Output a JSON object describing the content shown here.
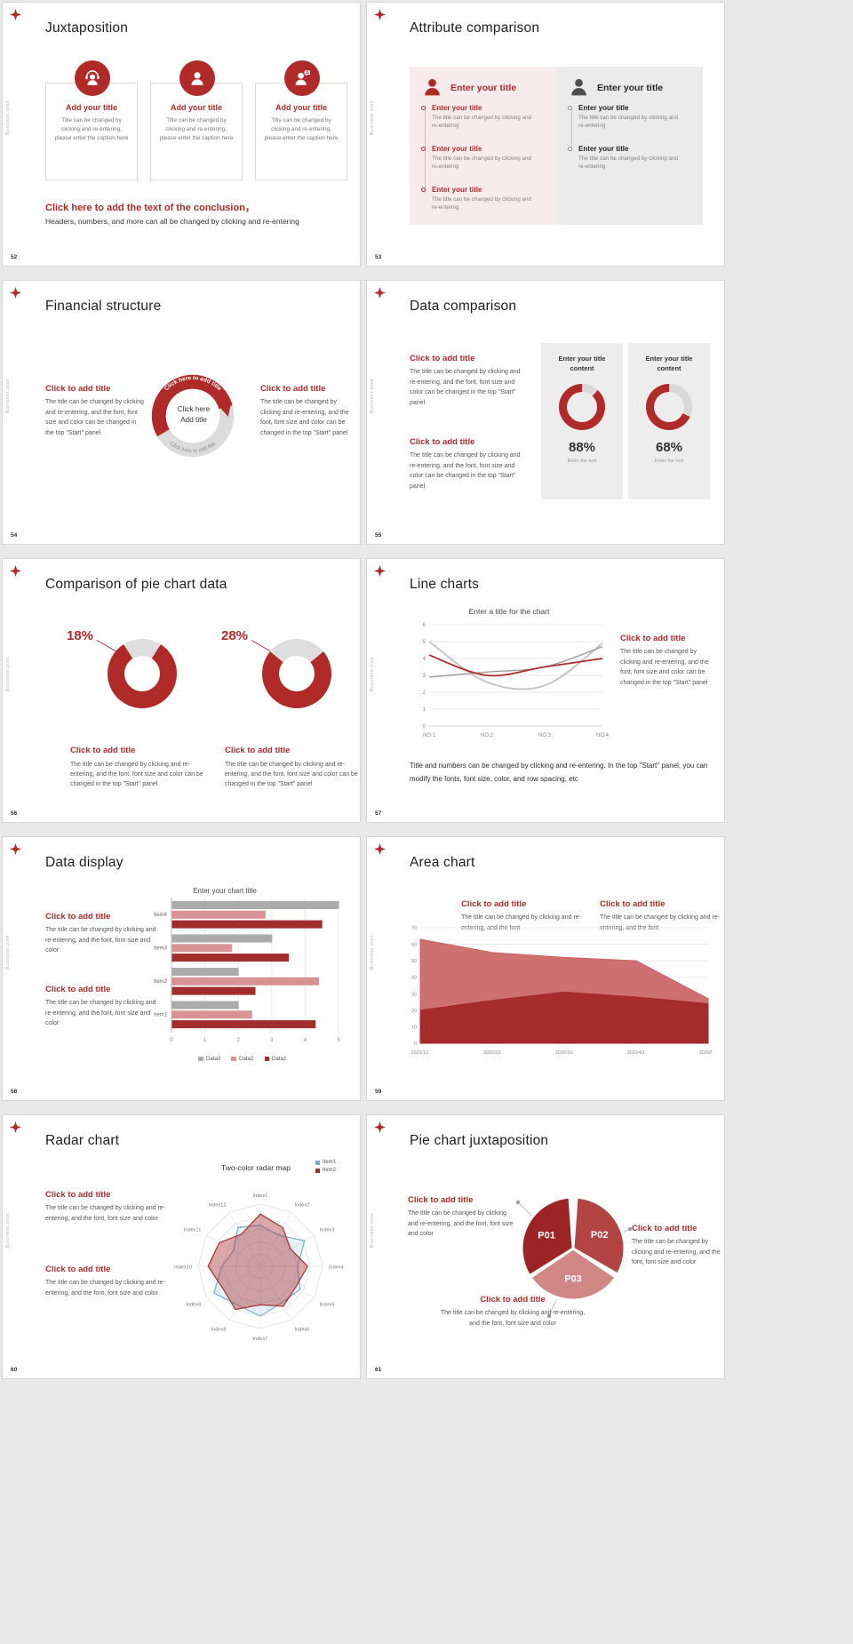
{
  "page": {
    "background": "#e9e9ea",
    "accent": "#b12a2a",
    "sidebar_label": "Business plan"
  },
  "slides": {
    "s52": {
      "number": "52",
      "title": "Juxtaposition",
      "cards": [
        {
          "icon": "support-person-icon",
          "title": "Add your title",
          "caption": "Title can be changed by clicking and re-entering, please enter the caption here"
        },
        {
          "icon": "person-icon",
          "title": "Add your title",
          "caption": "Title can be changed by clicking and re-entering, please enter the caption here"
        },
        {
          "icon": "person-speech-icon",
          "title": "Add your title",
          "caption": "Title can be changed by clicking and re-entering, please enter the caption here"
        }
      ],
      "conclusion_title": "Click here to add the text of the conclusion，",
      "conclusion_text": "Headers, numbers, and more can all be changed by clicking and re-entering"
    },
    "s53": {
      "number": "53",
      "title": "Attribute comparison",
      "left_panel": {
        "header": "Enter your title",
        "items": [
          {
            "title": "Enter your title",
            "desc": "The title can be changed by clicking and re-entering"
          },
          {
            "title": "Enter your title",
            "desc": "The title can be changed by clicking and re-entering"
          },
          {
            "title": "Enter your title",
            "desc": "The title can be changed by clicking and re-entering"
          }
        ]
      },
      "right_panel": {
        "header": "Enter your title",
        "items": [
          {
            "title": "Enter your title",
            "desc": "The title can be changed by clicking and re-entering"
          },
          {
            "title": "Enter your title",
            "desc": "The title can be changed by clicking and re-entering"
          }
        ]
      }
    },
    "s54": {
      "number": "54",
      "title": "Financial structure",
      "left": {
        "title": "Click to add title",
        "desc": "The title can be changed by clicking and re-entering, and the font, font size and color can be changed in the top \"Start\" panel"
      },
      "right": {
        "title": "Click to add title",
        "desc": "The title can be changed by clicking and re-entering, and the font, font size and color can be changed in the top \"Start\" panel"
      },
      "center_line1": "Click here",
      "center_line2": "Add title",
      "arc_text_top": "Click here to add title",
      "arc_text_bottom": "Click here to add title"
    },
    "s55": {
      "number": "55",
      "title": "Data comparison",
      "sections": [
        {
          "title": "Click to add title",
          "desc": "The title can be changed by clicking and re-entering, and the font, font size and color can be changed in the top \"Start\" panel"
        },
        {
          "title": "Click to add title",
          "desc": "The title can be changed by clicking and re-entering, and the font, font size and color can be changed in the top \"Start\" panel"
        }
      ],
      "gauges": [
        {
          "header": "Enter your title content",
          "value": 88,
          "percent": "88%",
          "caption": "Enter the text"
        },
        {
          "header": "Enter your title content",
          "value": 68,
          "percent": "68%",
          "caption": "Enter the text"
        }
      ]
    },
    "s56": {
      "number": "56",
      "title": "Comparison of pie chart data",
      "pies": [
        {
          "value": 18,
          "percent": "18%",
          "title": "Click to add title",
          "desc": "The title can be changed by clicking and re-entering, and the font, font size and color can be changed in the top \"Start\" panel"
        },
        {
          "value": 28,
          "percent": "28%",
          "title": "Click to add title",
          "desc": "The title can be changed by clicking and re-entering, and the font, font size and color can be changed in the top \"Start\" panel"
        }
      ]
    },
    "s57": {
      "number": "57",
      "title": "Line charts",
      "chart_data": {
        "type": "line",
        "title": "Enter a title for the chart",
        "x_labels": [
          "NO.1",
          "NO.2",
          "NO.3",
          "NO.4"
        ],
        "y_min": 0,
        "y_max": 6,
        "series": [
          {
            "name": "gray-light",
            "color": "#c6c6c6",
            "width": 2,
            "values": [
              5.0,
              2.6,
              2.4,
              4.9
            ]
          },
          {
            "name": "gray",
            "color": "#9b9b9b",
            "width": 1.4,
            "values": [
              2.9,
              3.2,
              3.5,
              4.7
            ]
          },
          {
            "name": "red",
            "color": "#b12a2a",
            "width": 1.8,
            "values": [
              4.2,
              3.0,
              3.5,
              4.0
            ]
          }
        ]
      },
      "side": {
        "title": "Click to add title",
        "desc": "The title can be changed by clicking and re-entering, and the font, font size and color can be changed in the top \"Start\" panel"
      },
      "footer": "Title and numbers can be changed by clicking and re-entering. In the top \"Start\" panel, you can modify the fonts, font size, color, and row spacing, etc"
    },
    "s58": {
      "number": "58",
      "title": "Data display",
      "sections": [
        {
          "title": "Click to add title",
          "desc": "The title can be changed by clicking and re-entering, and the font, font size and color"
        },
        {
          "title": "Click to add title",
          "desc": "The title can be changed by clicking and re-entering, and the font, font size and color"
        }
      ],
      "chart_data": {
        "type": "bar",
        "title": "Enter your chart title",
        "categories": [
          "Item1",
          "Item2",
          "Item3",
          "Item4"
        ],
        "x_min": 0,
        "x_max": 5,
        "series": [
          {
            "name": "Data1",
            "color": "#a32c2c",
            "values": [
              4.3,
              2.5,
              3.5,
              4.5
            ]
          },
          {
            "name": "Data2",
            "color": "#d89494",
            "values": [
              2.4,
              4.4,
              1.8,
              2.8
            ]
          },
          {
            "name": "Data3",
            "color": "#ababab",
            "values": [
              2.0,
              2.0,
              3.0,
              5.0
            ]
          }
        ],
        "legend_order": [
          "Data3",
          "Data2",
          "Data1"
        ]
      }
    },
    "s59": {
      "number": "59",
      "title": "Area chart",
      "sections": [
        {
          "title": "Click to add title",
          "desc": "The title can be changed by clicking and re-entering, and the font"
        },
        {
          "title": "Click to add title",
          "desc": "The title can be changed by clicking and re-entering, and the font"
        }
      ],
      "chart_data": {
        "type": "area",
        "x_labels": [
          "2020/1/1",
          "2020/2/1",
          "2020/3/1",
          "2020/4/1",
          "2020/5/1"
        ],
        "y_min": 0,
        "y_max": 70,
        "y_step": 10,
        "series": [
          {
            "name": "light-red-area",
            "color": "#ca6060",
            "values": [
              63,
              55,
              52,
              50,
              27
            ]
          },
          {
            "name": "dark-red-area",
            "color": "#a62a2a",
            "values": [
              20,
              26,
              31,
              28,
              24
            ]
          }
        ]
      }
    },
    "s60": {
      "number": "60",
      "title": "Radar chart",
      "sections": [
        {
          "title": "Click to add title",
          "desc": "The title can be changed by clicking and re-entering, and the font, font size and color"
        },
        {
          "title": "Click to add title",
          "desc": "The title can be changed by clicking and re-entering, and the font, font size and color"
        }
      ],
      "chart_data": {
        "type": "radar",
        "title": "Two-color radar map",
        "axes": [
          "Index1",
          "Index2",
          "Index3",
          "Index4",
          "Index5",
          "Index6",
          "Index7",
          "Index8",
          "Index9",
          "Index10",
          "Index11",
          "Index12"
        ],
        "levels": 5,
        "series": [
          {
            "name": "Item1",
            "color": "#74aed0",
            "fill": "rgba(116,174,208,0.18)",
            "values": [
              0.66,
              0.58,
              0.82,
              0.6,
              0.74,
              0.68,
              0.8,
              0.72,
              0.86,
              0.62,
              0.5,
              0.72
            ]
          },
          {
            "name": "Item2",
            "color": "#a83030",
            "fill": "rgba(168,48,48,0.42)",
            "values": [
              0.84,
              0.72,
              0.56,
              0.76,
              0.66,
              0.74,
              0.62,
              0.8,
              0.7,
              0.84,
              0.76,
              0.6
            ]
          }
        ]
      }
    },
    "s61": {
      "number": "61",
      "title": "Pie chart juxtaposition",
      "chart_data": {
        "type": "pie",
        "segments": [
          {
            "label": "P01",
            "color": "#9c2424",
            "start": 148,
            "end": 266
          },
          {
            "label": "P02",
            "color": "#b34444",
            "start": 274,
            "end": 390
          },
          {
            "label": "P03",
            "color": "#d28787",
            "start": 34,
            "end": 146
          }
        ]
      },
      "sections": [
        {
          "title": "Click to add title",
          "desc": "The title can be changed by clicking and re-entering, and the font, font size and color"
        },
        {
          "title": "Click to add title",
          "desc": "The title can be changed by clicking and re-entering, and the font, font size and color"
        },
        {
          "title": "Click to add title",
          "desc": "The title can be changed by clicking and re-entering, and the font, font size and color"
        }
      ]
    }
  }
}
